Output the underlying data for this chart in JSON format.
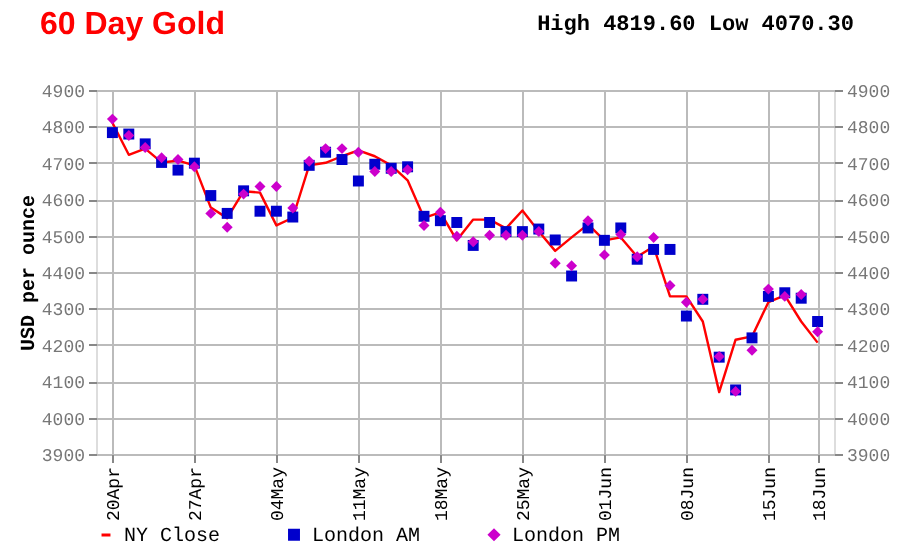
{
  "chart_data": {
    "type": "scatter",
    "title": "60 Day Gold",
    "annotations": [
      "High 4819.60 Low 4070.30"
    ],
    "ylabel": "USD per ounce",
    "categories": [
      "20Apr",
      null,
      null,
      null,
      null,
      "27Apr",
      null,
      null,
      null,
      null,
      "04May",
      null,
      null,
      null,
      null,
      "11May",
      null,
      null,
      null,
      null,
      "18May",
      null,
      null,
      null,
      null,
      "25May",
      null,
      null,
      null,
      null,
      "01Jun",
      null,
      null,
      null,
      null,
      "08Jun",
      null,
      null,
      null,
      null,
      "15Jun",
      null,
      null,
      "18Jun"
    ],
    "series": [
      {
        "name": "NY Close",
        "type": "line",
        "marker": "none",
        "color": "#ff0000",
        "values": [
          4810,
          4722,
          4739,
          4701,
          4706,
          4693,
          4577,
          4548,
          4622,
          4618,
          4528,
          4549,
          4693,
          4700,
          4718,
          4734,
          4718,
          4693,
          4652,
          4549,
          4564,
          4487,
          4544,
          4544,
          4520,
          4569,
          4511,
          4458,
          4495,
          4531,
          4487,
          4495,
          4442,
          4470,
          4333,
          4333,
          4264,
          4070,
          4214,
          4223,
          4317,
          4336,
          4264,
          4206
        ]
      },
      {
        "name": "London AM",
        "marker": "square",
        "color": "#0000cc",
        "values": [
          4783,
          4779,
          4752,
          4701,
          4680,
          4699,
          4610,
          4561,
          4623,
          4567,
          4567,
          4551,
          4693,
          4729,
          4709,
          4650,
          4696,
          4685,
          4689,
          4553,
          4541,
          4536,
          4473,
          4536,
          4511,
          4511,
          4518,
          4488,
          4389,
          4521,
          4487,
          4521,
          4435,
          4462,
          4462,
          4279,
          4325,
          4166,
          4076,
          4219,
          4333,
          4343,
          4328,
          4264
        ]
      },
      {
        "name": "London PM",
        "marker": "diamond",
        "color": "#cc00cc",
        "values": [
          4820,
          4775,
          4742,
          4714,
          4709,
          4689,
          4561,
          4523,
          4614,
          4635,
          4635,
          4576,
          4704,
          4739,
          4739,
          4729,
          4676,
          4676,
          4681,
          4528,
          4564,
          4498,
          4483,
          4501,
          4501,
          4501,
          4511,
          4424,
          4417,
          4541,
          4447,
          4503,
          4442,
          4495,
          4363,
          4317,
          4325,
          4168,
          4072,
          4185,
          4353,
          4333,
          4338,
          4236
        ]
      }
    ],
    "ylim": [
      3900,
      4900
    ],
    "yticks": [
      3900,
      4000,
      4100,
      4200,
      4300,
      4400,
      4500,
      4600,
      4700,
      4800,
      4900
    ],
    "y2lim": [
      3900,
      4900
    ],
    "y2ticks": [
      3900,
      4000,
      4100,
      4200,
      4300,
      4400,
      4500,
      4600,
      4700,
      4800,
      4900
    ],
    "grid": true,
    "legend": "bottom"
  }
}
